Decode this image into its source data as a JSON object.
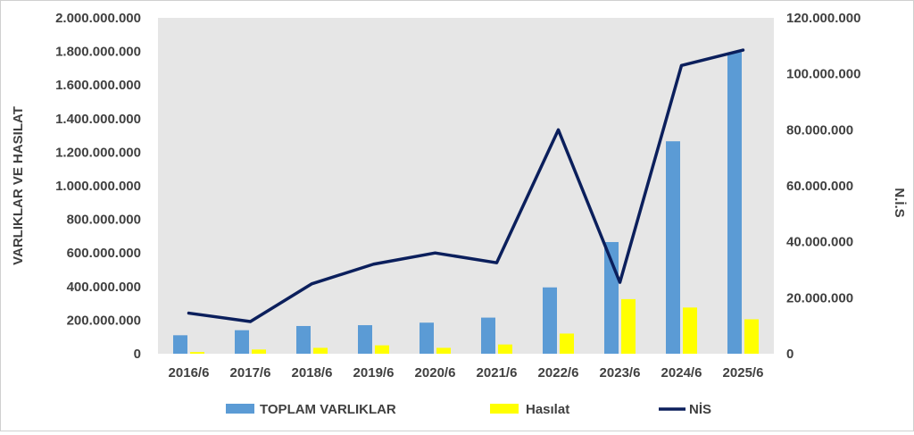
{
  "chart_data": {
    "type": "bar",
    "categories": [
      "2016/6",
      "2017/6",
      "2018/6",
      "2019/6",
      "2020/6",
      "2021/6",
      "2022/6",
      "2023/6",
      "2024/6",
      "2025/6"
    ],
    "series": [
      {
        "name": "TOPLAM VARLIKLAR",
        "kind": "bar",
        "axis": "left",
        "color": "#5b9bd5",
        "values": [
          110000000,
          140000000,
          165000000,
          170000000,
          185000000,
          215000000,
          395000000,
          665000000,
          1265000000,
          1795000000
        ]
      },
      {
        "name": "Hasılat",
        "kind": "bar",
        "axis": "left",
        "color": "#ffff00",
        "values": [
          10000000,
          25000000,
          35000000,
          50000000,
          35000000,
          55000000,
          120000000,
          325000000,
          275000000,
          205000000
        ]
      },
      {
        "name": "NİS",
        "kind": "line",
        "axis": "right",
        "color": "#0b1f5c",
        "values": [
          14500000,
          11500000,
          25000000,
          32000000,
          36000000,
          32500000,
          80000000,
          25500000,
          103000000,
          108500000
        ]
      }
    ],
    "y_left": {
      "label": "VARLIKLAR VE HASILAT",
      "ylim": [
        0,
        2000000000
      ],
      "ticks": [
        0,
        200000000,
        400000000,
        600000000,
        800000000,
        1000000000,
        1200000000,
        1400000000,
        1600000000,
        1800000000,
        2000000000
      ],
      "tick_labels": [
        "0",
        "200.000.000",
        "400.000.000",
        "600.000.000",
        "800.000.000",
        "1.000.000.000",
        "1.200.000.000",
        "1.400.000.000",
        "1.600.000.000",
        "1.800.000.000",
        "2.000.000.000"
      ]
    },
    "y_right": {
      "label": "N.İ.S",
      "ylim": [
        0,
        120000000
      ],
      "ticks": [
        0,
        20000000,
        40000000,
        60000000,
        80000000,
        100000000,
        120000000
      ],
      "tick_labels": [
        "0",
        "20.000.000",
        "40.000.000",
        "60.000.000",
        "80.000.000",
        "100.000.000",
        "120.000.000"
      ]
    },
    "legend": {
      "placement": "bottom",
      "entries": [
        "TOPLAM VARLIKLAR",
        "Hasılat",
        "NİS"
      ]
    },
    "plot_background": "#e6e6e6",
    "grid": false
  }
}
